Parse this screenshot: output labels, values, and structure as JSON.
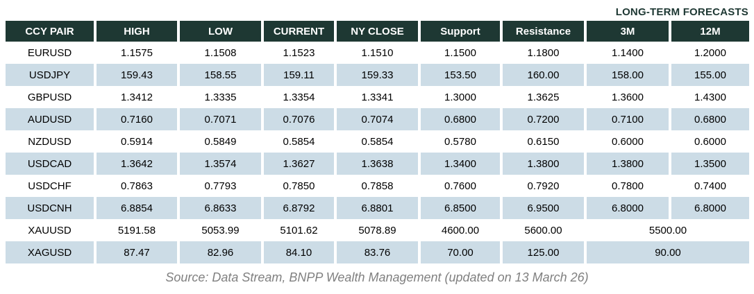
{
  "title": "LONG-TERM FORECASTS",
  "footer": {
    "source": "Source: Data Stream, BNPP Wealth Management (updated on 13 March 26)"
  },
  "colors": {
    "header_bg": "#1e3833",
    "header_fg": "#ffffff",
    "row_alt_bg": "#ccdce6",
    "row_bg": "#ffffff",
    "text": "#000000",
    "source_fg": "#808080",
    "title_fg": "#1e3833"
  },
  "table": {
    "columns": [
      "CCY PAIR",
      "HIGH",
      "LOW",
      "CURRENT",
      "NY CLOSE",
      "Support",
      "Resistance",
      "3M",
      "12M"
    ],
    "rows": [
      {
        "pair": "EURUSD",
        "high": "1.1575",
        "low": "1.1508",
        "current": "1.1523",
        "ny_close": "1.1510",
        "support": "1.1500",
        "resistance": "1.1800",
        "m3": "1.1400",
        "m12": "1.2000"
      },
      {
        "pair": "USDJPY",
        "high": "159.43",
        "low": "158.55",
        "current": "159.11",
        "ny_close": "159.33",
        "support": "153.50",
        "resistance": "160.00",
        "m3": "158.00",
        "m12": "155.00"
      },
      {
        "pair": "GBPUSD",
        "high": "1.3412",
        "low": "1.3335",
        "current": "1.3354",
        "ny_close": "1.3341",
        "support": "1.3000",
        "resistance": "1.3625",
        "m3": "1.3600",
        "m12": "1.4300"
      },
      {
        "pair": "AUDUSD",
        "high": "0.7160",
        "low": "0.7071",
        "current": "0.7076",
        "ny_close": "0.7074",
        "support": "0.6800",
        "resistance": "0.7200",
        "m3": "0.7100",
        "m12": "0.6800"
      },
      {
        "pair": "NZDUSD",
        "high": "0.5914",
        "low": "0.5849",
        "current": "0.5854",
        "ny_close": "0.5854",
        "support": "0.5780",
        "resistance": "0.6150",
        "m3": "0.6000",
        "m12": "0.6000"
      },
      {
        "pair": "USDCAD",
        "high": "1.3642",
        "low": "1.3574",
        "current": "1.3627",
        "ny_close": "1.3638",
        "support": "1.3400",
        "resistance": "1.3800",
        "m3": "1.3800",
        "m12": "1.3500"
      },
      {
        "pair": "USDCHF",
        "high": "0.7863",
        "low": "0.7793",
        "current": "0.7850",
        "ny_close": "0.7858",
        "support": "0.7600",
        "resistance": "0.7920",
        "m3": "0.7800",
        "m12": "0.7400"
      },
      {
        "pair": "USDCNH",
        "high": "6.8854",
        "low": "6.8633",
        "current": "6.8792",
        "ny_close": "6.8801",
        "support": "6.8500",
        "resistance": "6.9500",
        "m3": "6.8000",
        "m12": "6.8000"
      },
      {
        "pair": "XAUUSD",
        "high": "5191.58",
        "low": "5053.99",
        "current": "5101.62",
        "ny_close": "5078.89",
        "support": "4600.00",
        "resistance": "5600.00",
        "forecast_merged": "5500.00"
      },
      {
        "pair": "XAGUSD",
        "high": "87.47",
        "low": "82.96",
        "current": "84.10",
        "ny_close": "83.76",
        "support": "70.00",
        "resistance": "125.00",
        "forecast_merged": "90.00"
      }
    ]
  },
  "chart_data": {
    "type": "table",
    "title": "LONG-TERM FORECASTS",
    "columns": [
      "CCY PAIR",
      "HIGH",
      "LOW",
      "CURRENT",
      "NY CLOSE",
      "Support",
      "Resistance",
      "3M",
      "12M"
    ],
    "rows": [
      [
        "EURUSD",
        1.1575,
        1.1508,
        1.1523,
        1.151,
        1.15,
        1.18,
        1.14,
        1.2
      ],
      [
        "USDJPY",
        159.43,
        158.55,
        159.11,
        159.33,
        153.5,
        160.0,
        158.0,
        155.0
      ],
      [
        "GBPUSD",
        1.3412,
        1.3335,
        1.3354,
        1.3341,
        1.3,
        1.3625,
        1.36,
        1.43
      ],
      [
        "AUDUSD",
        0.716,
        0.7071,
        0.7076,
        0.7074,
        0.68,
        0.72,
        0.71,
        0.68
      ],
      [
        "NZDUSD",
        0.5914,
        0.5849,
        0.5854,
        0.5854,
        0.578,
        0.615,
        0.6,
        0.6
      ],
      [
        "USDCAD",
        1.3642,
        1.3574,
        1.3627,
        1.3638,
        1.34,
        1.38,
        1.38,
        1.35
      ],
      [
        "USDCHF",
        0.7863,
        0.7793,
        0.785,
        0.7858,
        0.76,
        0.792,
        0.78,
        0.74
      ],
      [
        "USDCNH",
        6.8854,
        6.8633,
        6.8792,
        6.8801,
        6.85,
        6.95,
        6.8,
        6.8
      ],
      [
        "XAUUSD",
        5191.58,
        5053.99,
        5101.62,
        5078.89,
        4600.0,
        5600.0,
        5500.0,
        5500.0
      ],
      [
        "XAGUSD",
        87.47,
        82.96,
        84.1,
        83.76,
        70.0,
        125.0,
        90.0,
        90.0
      ]
    ],
    "notes": "3M and 12M cells are merged (single value) for XAUUSD (5500.00) and XAGUSD (90.00). Footer: Source: Data Stream, BNPP Wealth Management (updated on 13 March 26)"
  }
}
